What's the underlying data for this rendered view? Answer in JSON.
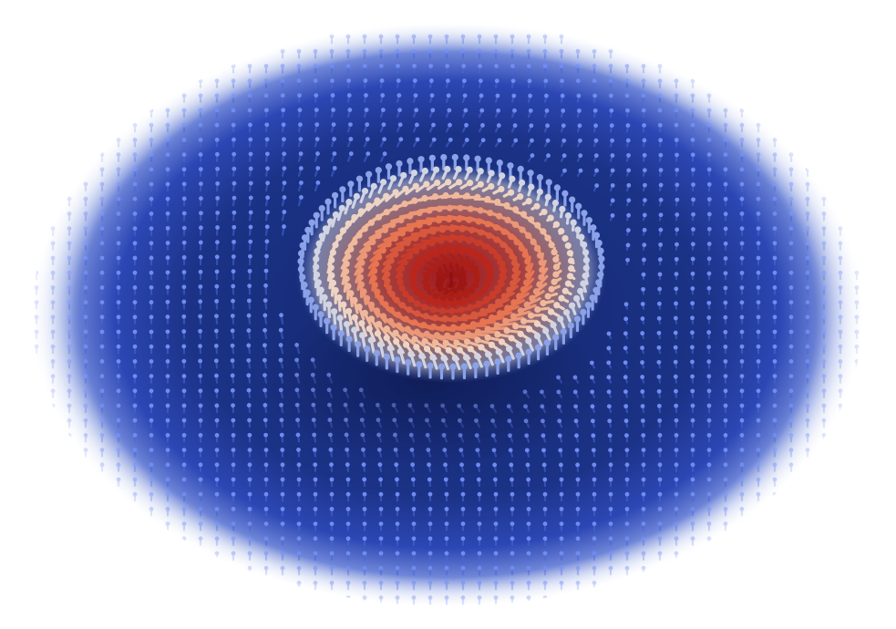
{
  "image": {
    "subject": "skyrmion-spin-texture",
    "colors": {
      "background": "#ffffff",
      "field_deep": "#0d1f5c",
      "field_mid": "#2a48b8",
      "arrow_blue": "#4a67d6",
      "arrow_blue_light": "#6f8cf0",
      "core_dark": "#8e1010",
      "core_red": "#c8331f",
      "ring_orange": "#ef9068",
      "ring_peach": "#f2c2a6",
      "ring_white": "#e8e4e0"
    }
  }
}
